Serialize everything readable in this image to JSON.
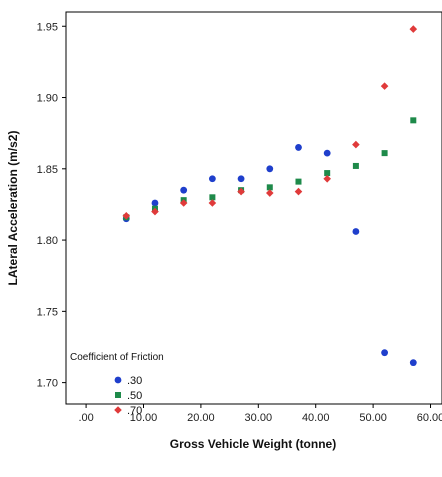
{
  "chart_data": {
    "type": "scatter",
    "title": "",
    "xlabel": "Gross Vehicle Weight (tonne)",
    "ylabel": "LAteral Acceleration (m/s2)",
    "xlim": [
      -3.5,
      62
    ],
    "ylim": [
      1.685,
      1.96
    ],
    "x_ticks": [
      0,
      10,
      20,
      30,
      40,
      50,
      60
    ],
    "x_tick_labels": [
      ".00",
      "10.00",
      "20.00",
      "30.00",
      "40.00",
      "50.00",
      "60.00"
    ],
    "y_ticks": [
      1.7,
      1.75,
      1.8,
      1.85,
      1.9,
      1.95
    ],
    "y_tick_labels": [
      "1.70",
      "1.75",
      "1.80",
      "1.85",
      "1.90",
      "1.95"
    ],
    "grid": false,
    "legend": {
      "title": "Coefficient of Friction",
      "placement": "bottom-left"
    },
    "series": [
      {
        "name": ".30",
        "marker": "circle",
        "color": "#1f3fcc",
        "points": [
          [
            7,
            1.815
          ],
          [
            12,
            1.826
          ],
          [
            17,
            1.835
          ],
          [
            22,
            1.843
          ],
          [
            27,
            1.843
          ],
          [
            32,
            1.85
          ],
          [
            37,
            1.865
          ],
          [
            42,
            1.861
          ],
          [
            47,
            1.806
          ],
          [
            52,
            1.721
          ],
          [
            57,
            1.714
          ]
        ]
      },
      {
        "name": ".50",
        "marker": "square",
        "color": "#1e8a4a",
        "points": [
          [
            7,
            1.816
          ],
          [
            12,
            1.822
          ],
          [
            17,
            1.828
          ],
          [
            22,
            1.83
          ],
          [
            27,
            1.835
          ],
          [
            32,
            1.837
          ],
          [
            37,
            1.841
          ],
          [
            42,
            1.847
          ],
          [
            47,
            1.852
          ],
          [
            52,
            1.861
          ],
          [
            57,
            1.884
          ]
        ]
      },
      {
        "name": ".70",
        "marker": "diamond",
        "color": "#e03a3a",
        "points": [
          [
            7,
            1.817
          ],
          [
            12,
            1.82
          ],
          [
            17,
            1.826
          ],
          [
            22,
            1.826
          ],
          [
            27,
            1.834
          ],
          [
            32,
            1.833
          ],
          [
            37,
            1.834
          ],
          [
            42,
            1.843
          ],
          [
            47,
            1.867
          ],
          [
            52,
            1.908
          ],
          [
            57,
            1.948
          ]
        ]
      }
    ]
  }
}
